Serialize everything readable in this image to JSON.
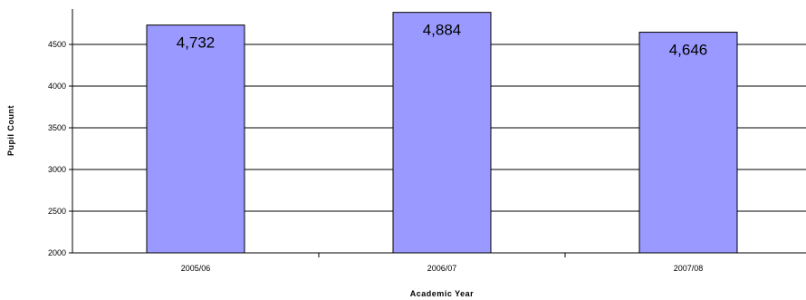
{
  "chart_data": {
    "type": "bar",
    "title": "",
    "xlabel": "Academic Year",
    "ylabel": "Pupil Count",
    "categories": [
      "2005/06",
      "2006/07",
      "2007/08"
    ],
    "values": [
      4732,
      4884,
      4646
    ],
    "data_labels": [
      "4,732",
      "4,884",
      "4,646"
    ],
    "ylim": [
      2000,
      4900
    ],
    "yticks": [
      2000,
      2500,
      3000,
      3500,
      4000,
      4500
    ],
    "ytick_labels": [
      "2000",
      "2500",
      "3000",
      "3500",
      "4000",
      "4500"
    ],
    "grid": true,
    "legend": "none",
    "colors": {
      "bar_fill": "#9999ff",
      "bar_stroke": "#000000",
      "grid": "#000000",
      "axis": "#000000"
    }
  }
}
